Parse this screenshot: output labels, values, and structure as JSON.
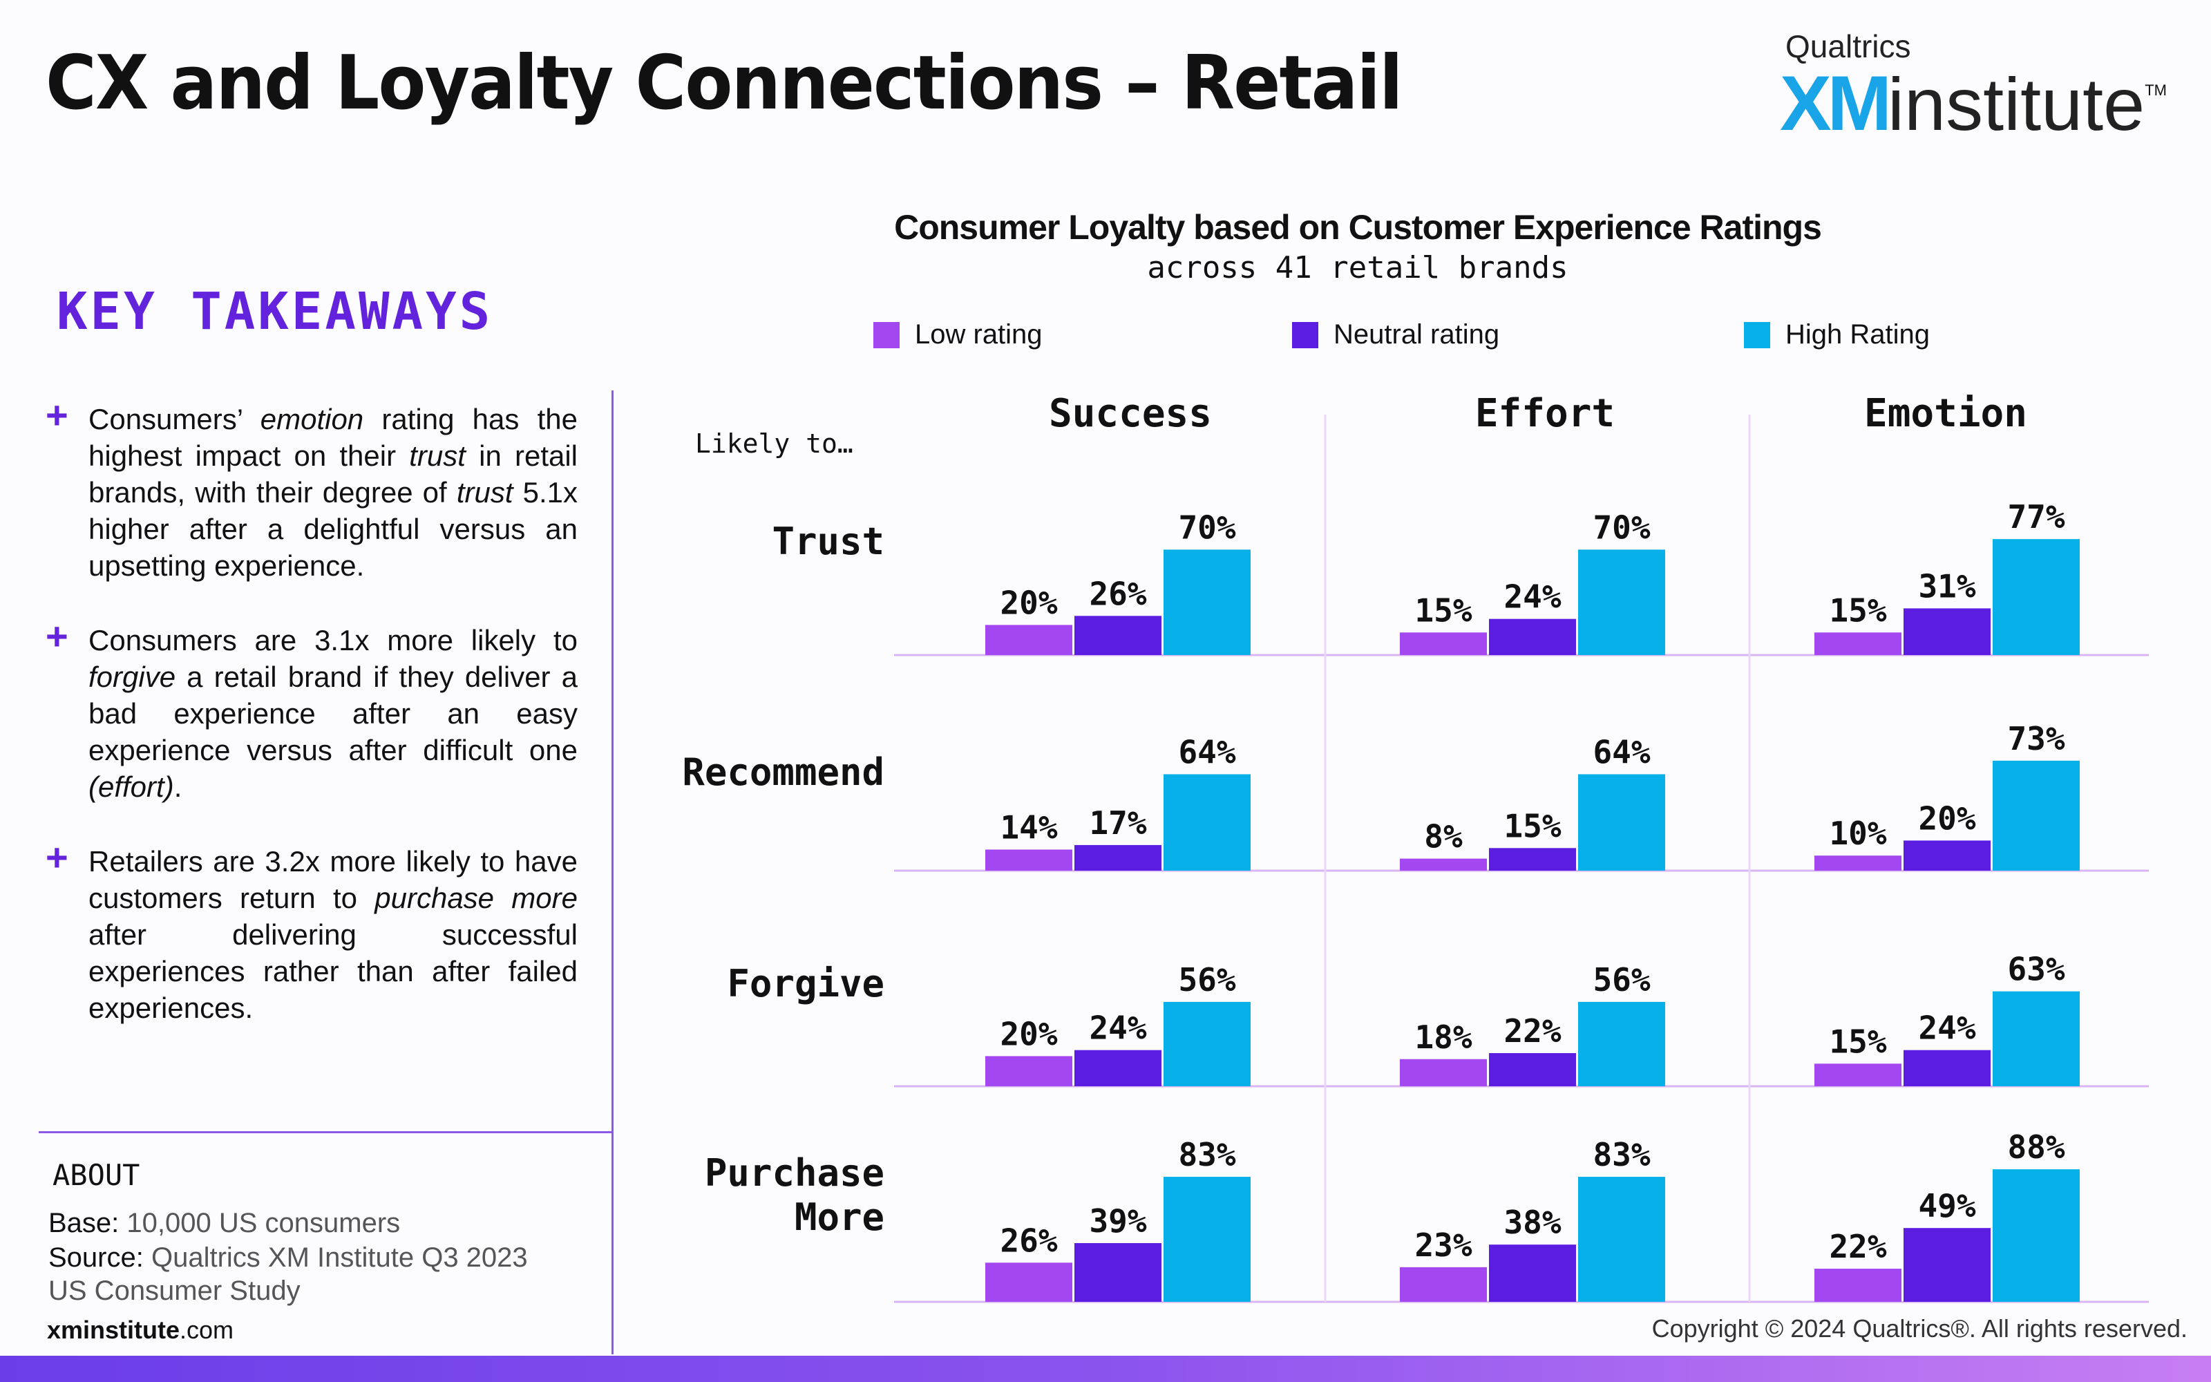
{
  "header": {
    "title": "CX and Loyalty Connections – Retail",
    "logo_brand": "Qualtrics",
    "logo_xm": "XM",
    "logo_institute": "institute",
    "logo_tm": "TM"
  },
  "takeaways": {
    "title": "KEY TAKEAWAYS",
    "items": [
      "Consumers’ emotion rating has the highest impact on their trust in retail brands, with their degree of trust 5.1x higher after a delightful versus an upsetting experience.",
      "Consumers are 3.1x more likely to forgive a retail brand if they deliver a bad experience after an easy experience versus after difficult one (effort).",
      "Retailers are 3.2x more likely to have customers return to purchase more after delivering successful experiences rather than after failed experiences."
    ]
  },
  "about": {
    "title": "ABOUT",
    "base_label": "Base:",
    "base_value": " 10,000 US consumers",
    "source_label": "Source:",
    "source_value": " Qualtrics XM Institute Q3 2023 US Consumer Study"
  },
  "footer": {
    "site_bold": "xminstitute",
    "site_rest": ".com",
    "copyright": "Copyright © 2024 Qualtrics®. All rights reserved."
  },
  "chart_data": {
    "type": "bar",
    "title": "Consumer Loyalty based on Customer Experience Ratings",
    "subtitle": "across 41 retail brands",
    "row_header": "Likely to…",
    "legend": [
      "Low rating",
      "Neutral rating",
      "High Rating"
    ],
    "colors": {
      "low": "#a347f0",
      "neutral": "#5b1ee0",
      "high": "#08b0ea"
    },
    "columns": [
      "Success",
      "Effort",
      "Emotion"
    ],
    "rows": [
      "Trust",
      "Recommend",
      "Forgive",
      "Purchase More"
    ],
    "values": [
      [
        [
          20,
          26,
          70
        ],
        [
          15,
          24,
          70
        ],
        [
          15,
          31,
          77
        ]
      ],
      [
        [
          14,
          17,
          64
        ],
        [
          8,
          15,
          64
        ],
        [
          10,
          20,
          73
        ]
      ],
      [
        [
          20,
          24,
          56
        ],
        [
          18,
          22,
          56
        ],
        [
          15,
          24,
          63
        ]
      ],
      [
        [
          26,
          39,
          83
        ],
        [
          23,
          38,
          83
        ],
        [
          22,
          49,
          88
        ]
      ]
    ],
    "unit": "%"
  }
}
